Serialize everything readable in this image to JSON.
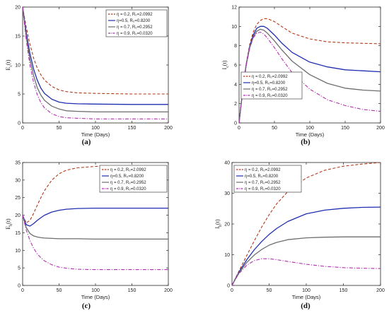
{
  "captions": [
    "(a)",
    "(b)",
    "(c)",
    "(d)"
  ],
  "legend_labels": [
    "η = 0.2, R₀=2.0992",
    "η=0.5, R₀=0.8200",
    "η = 0.7, R₀=0.2952",
    "η = 0.9, R₀=0.0320"
  ],
  "chart_data": [
    {
      "type": "line",
      "panel": "a",
      "ylabel": "E_c(t)",
      "xlabel": "Time (Days)",
      "xlim": [
        0,
        200
      ],
      "ylim": [
        0,
        20
      ],
      "xticks": [
        0,
        50,
        100,
        150,
        200
      ],
      "yticks": [
        0,
        5,
        10,
        15,
        20
      ],
      "legend_position": "top-right",
      "series": [
        {
          "name": "η = 0.2, R₀=2.0992",
          "color": "#b03a1a",
          "dash": "dash",
          "x": [
            0,
            5,
            10,
            15,
            20,
            25,
            30,
            40,
            50,
            60,
            75,
            100,
            150,
            200
          ],
          "y": [
            20,
            16.5,
            13.6,
            11.2,
            9.5,
            8.3,
            7.4,
            6.3,
            5.7,
            5.4,
            5.2,
            5.1,
            5.0,
            5.0
          ]
        },
        {
          "name": "η=0.5, R₀=0.8200",
          "color": "#1f2fb0",
          "dash": "solid",
          "x": [
            0,
            5,
            10,
            15,
            20,
            25,
            30,
            40,
            50,
            60,
            75,
            100,
            150,
            200
          ],
          "y": [
            20,
            15.6,
            12.0,
            9.3,
            7.4,
            6.0,
            5.1,
            4.1,
            3.6,
            3.4,
            3.3,
            3.25,
            3.2,
            3.2
          ]
        },
        {
          "name": "η = 0.7, R₀=0.2952",
          "color": "#6e6e6e",
          "dash": "solid",
          "x": [
            0,
            5,
            10,
            15,
            20,
            25,
            30,
            40,
            50,
            60,
            75,
            100,
            150,
            200
          ],
          "y": [
            20,
            15.0,
            11.0,
            8.2,
            6.1,
            4.8,
            3.9,
            2.9,
            2.4,
            2.1,
            2.0,
            1.9,
            1.9,
            1.9
          ]
        },
        {
          "name": "η = 0.9, R₀=0.0320",
          "color": "#b030b0",
          "dash": "dashdot",
          "x": [
            0,
            5,
            10,
            15,
            20,
            25,
            30,
            40,
            50,
            60,
            75,
            100,
            150,
            200
          ],
          "y": [
            20,
            14.3,
            10.0,
            7.0,
            4.9,
            3.5,
            2.6,
            1.6,
            1.1,
            0.9,
            0.8,
            0.7,
            0.7,
            0.7
          ]
        }
      ]
    },
    {
      "type": "line",
      "panel": "b",
      "ylabel": "I_c(t)",
      "xlabel": "Time (Days)",
      "xlim": [
        0,
        200
      ],
      "ylim": [
        0,
        12
      ],
      "xticks": [
        0,
        50,
        100,
        150,
        200
      ],
      "yticks": [
        0,
        2,
        4,
        6,
        8,
        10,
        12
      ],
      "legend_position": "bottom-left",
      "series": [
        {
          "name": "η = 0.2, R₀=2.0992",
          "color": "#b03a1a",
          "dash": "dash",
          "x": [
            0,
            5,
            10,
            15,
            20,
            25,
            30,
            35,
            40,
            50,
            60,
            75,
            100,
            125,
            150,
            175,
            200
          ],
          "y": [
            0,
            3.3,
            6.1,
            8.1,
            9.4,
            10.2,
            10.6,
            10.8,
            10.8,
            10.5,
            10.0,
            9.3,
            8.7,
            8.4,
            8.3,
            8.25,
            8.2
          ]
        },
        {
          "name": "η=0.5, R₀=0.8200",
          "color": "#1f2fb0",
          "dash": "solid",
          "x": [
            0,
            5,
            10,
            15,
            20,
            25,
            30,
            35,
            40,
            50,
            60,
            75,
            100,
            125,
            150,
            175,
            200
          ],
          "y": [
            0,
            3.3,
            6.0,
            7.9,
            9.1,
            9.8,
            10.0,
            10.0,
            9.8,
            9.1,
            8.3,
            7.3,
            6.3,
            5.8,
            5.5,
            5.4,
            5.3
          ]
        },
        {
          "name": "η = 0.7, R₀=0.2952",
          "color": "#6e6e6e",
          "dash": "solid",
          "x": [
            0,
            5,
            10,
            15,
            20,
            25,
            30,
            35,
            40,
            50,
            60,
            75,
            100,
            125,
            150,
            175,
            200
          ],
          "y": [
            0,
            3.3,
            6.0,
            7.8,
            8.9,
            9.5,
            9.7,
            9.6,
            9.3,
            8.5,
            7.6,
            6.4,
            5.0,
            4.1,
            3.6,
            3.4,
            3.3
          ]
        },
        {
          "name": "η = 0.9, R₀=0.0320",
          "color": "#b030b0",
          "dash": "dashdot",
          "x": [
            0,
            5,
            10,
            15,
            20,
            25,
            30,
            35,
            40,
            50,
            60,
            75,
            100,
            125,
            150,
            175,
            200
          ],
          "y": [
            0,
            3.2,
            5.9,
            7.7,
            8.8,
            9.3,
            9.4,
            9.2,
            8.8,
            7.8,
            6.7,
            5.2,
            3.5,
            2.4,
            1.8,
            1.4,
            1.2
          ]
        }
      ]
    },
    {
      "type": "line",
      "panel": "c",
      "ylabel": "E_h(t)",
      "xlabel": "Time (Days)",
      "xlim": [
        0,
        200
      ],
      "ylim": [
        0,
        35
      ],
      "xticks": [
        0,
        50,
        100,
        150,
        200
      ],
      "yticks": [
        0,
        5,
        10,
        15,
        20,
        25,
        30,
        35
      ],
      "legend_position": "top-right",
      "series": [
        {
          "name": "η = 0.2, R₀=2.0992",
          "color": "#b03a1a",
          "dash": "dash",
          "x": [
            0,
            5,
            10,
            15,
            20,
            25,
            30,
            40,
            50,
            60,
            75,
            100,
            125,
            150,
            200
          ],
          "y": [
            20,
            17.8,
            18.5,
            20.5,
            22.8,
            25.0,
            27.0,
            30.0,
            31.8,
            32.8,
            33.5,
            33.9,
            34.0,
            34.0,
            34.0
          ]
        },
        {
          "name": "η=0.5, R₀=0.8200",
          "color": "#1f2fb0",
          "dash": "solid",
          "x": [
            0,
            5,
            10,
            15,
            20,
            25,
            30,
            40,
            50,
            60,
            75,
            100,
            125,
            150,
            200
          ],
          "y": [
            20,
            17.3,
            16.9,
            17.6,
            18.5,
            19.3,
            20.0,
            20.9,
            21.4,
            21.7,
            21.9,
            22.0,
            22.0,
            22.0,
            22.0
          ]
        },
        {
          "name": "η = 0.7, R₀=0.2952",
          "color": "#6e6e6e",
          "dash": "solid",
          "x": [
            0,
            5,
            10,
            15,
            20,
            25,
            30,
            40,
            50,
            60,
            75,
            100,
            125,
            150,
            200
          ],
          "y": [
            20,
            16.5,
            14.8,
            14.1,
            13.8,
            13.6,
            13.5,
            13.4,
            13.3,
            13.3,
            13.3,
            13.2,
            13.2,
            13.2,
            13.2
          ]
        },
        {
          "name": "η = 0.9, R₀=0.0320",
          "color": "#b030b0",
          "dash": "dashdot",
          "x": [
            0,
            5,
            10,
            15,
            20,
            25,
            30,
            40,
            50,
            60,
            75,
            100,
            125,
            150,
            200
          ],
          "y": [
            20,
            15.8,
            12.8,
            10.6,
            9.0,
            7.9,
            7.0,
            5.9,
            5.2,
            4.9,
            4.6,
            4.5,
            4.5,
            4.5,
            4.5
          ]
        }
      ]
    },
    {
      "type": "line",
      "panel": "d",
      "ylabel": "I_h(t)",
      "xlabel": "Time (Days)",
      "xlim": [
        0,
        200
      ],
      "ylim": [
        0,
        40
      ],
      "xticks": [
        0,
        50,
        100,
        150,
        200
      ],
      "yticks": [
        0,
        10,
        20,
        30,
        40
      ],
      "legend_position": "top-left",
      "series": [
        {
          "name": "η = 0.2, R₀=2.0992",
          "color": "#b03a1a",
          "dash": "dash",
          "x": [
            0,
            5,
            10,
            20,
            30,
            40,
            50,
            60,
            75,
            100,
            125,
            150,
            175,
            200
          ],
          "y": [
            0,
            2.5,
            5.0,
            9.8,
            14.5,
            19.0,
            23.0,
            26.5,
            30.5,
            35.0,
            37.5,
            38.8,
            39.5,
            40.0
          ]
        },
        {
          "name": "η=0.5, R₀=0.8200",
          "color": "#1f2fb0",
          "dash": "solid",
          "x": [
            0,
            5,
            10,
            20,
            30,
            40,
            50,
            60,
            75,
            100,
            125,
            150,
            175,
            200
          ],
          "y": [
            0,
            2.4,
            4.6,
            8.4,
            11.6,
            14.3,
            16.6,
            18.5,
            20.8,
            23.3,
            24.5,
            25.1,
            25.4,
            25.5
          ]
        },
        {
          "name": "η = 0.7, R₀=0.2952",
          "color": "#6e6e6e",
          "dash": "solid",
          "x": [
            0,
            5,
            10,
            20,
            30,
            40,
            50,
            60,
            75,
            100,
            125,
            150,
            175,
            200
          ],
          "y": [
            0,
            2.3,
            4.3,
            7.5,
            9.9,
            11.7,
            13.1,
            14.0,
            14.9,
            15.5,
            15.7,
            15.8,
            15.8,
            15.8
          ]
        },
        {
          "name": "η = 0.9, R₀=0.0320",
          "color": "#b030b0",
          "dash": "dashdot",
          "x": [
            0,
            5,
            10,
            20,
            30,
            40,
            50,
            60,
            75,
            100,
            125,
            150,
            175,
            200
          ],
          "y": [
            0,
            2.2,
            4.0,
            6.6,
            8.1,
            8.7,
            8.7,
            8.4,
            7.8,
            6.9,
            6.2,
            5.8,
            5.6,
            5.5
          ]
        }
      ]
    }
  ]
}
